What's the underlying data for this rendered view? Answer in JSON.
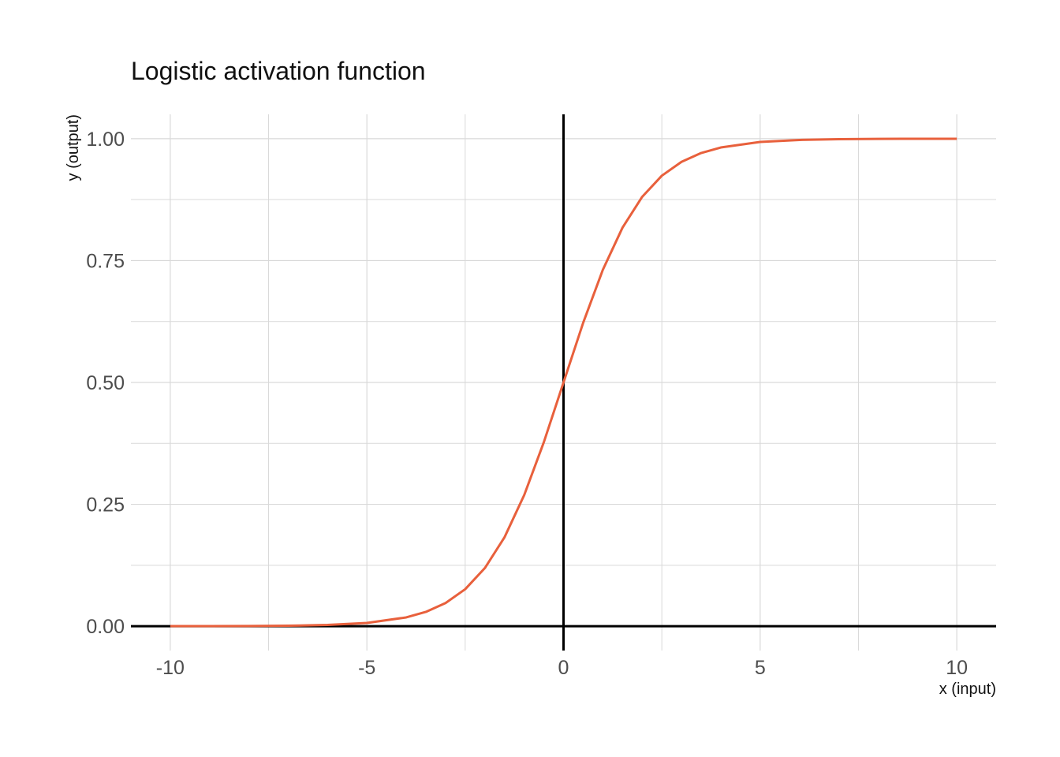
{
  "chart_data": {
    "type": "line",
    "title": "Logistic activation function",
    "xlabel": "x (input)",
    "ylabel": "y (output)",
    "xlim": [
      -11,
      11
    ],
    "ylim": [
      -0.05,
      1.05
    ],
    "x_ticks": [
      -10,
      -5,
      0,
      5,
      10
    ],
    "x_tick_labels": [
      "-10",
      "-5",
      "0",
      "5",
      "10"
    ],
    "y_ticks": [
      0,
      0.25,
      0.5,
      0.75,
      1.0
    ],
    "y_tick_labels": [
      "0.00",
      "0.25",
      "0.50",
      "0.75",
      "1.00"
    ],
    "grid": true,
    "reference_lines": {
      "x": 0,
      "y": 0
    },
    "series": [
      {
        "color": "#e8603c",
        "x": [
          -10,
          -9,
          -8,
          -7,
          -6,
          -5,
          -4,
          -3.5,
          -3,
          -2.5,
          -2,
          -1.5,
          -1,
          -0.5,
          0,
          0.5,
          1,
          1.5,
          2,
          2.5,
          3,
          3.5,
          4,
          5,
          6,
          7,
          8,
          9,
          10
        ],
        "y": [
          5e-05,
          0.00012,
          0.00034,
          0.00091,
          0.00247,
          0.00669,
          0.01799,
          0.02931,
          0.04743,
          0.07586,
          0.1192,
          0.18243,
          0.26894,
          0.37754,
          0.5,
          0.62246,
          0.73106,
          0.81757,
          0.8808,
          0.92414,
          0.95257,
          0.97069,
          0.98201,
          0.99331,
          0.99753,
          0.99909,
          0.99966,
          0.99988,
          0.99995
        ]
      }
    ]
  },
  "colors": {
    "grid": "#d9d9d9",
    "reference_line": "#000000",
    "curve": "#e8603c",
    "tick_text": "#4d4d4d"
  }
}
